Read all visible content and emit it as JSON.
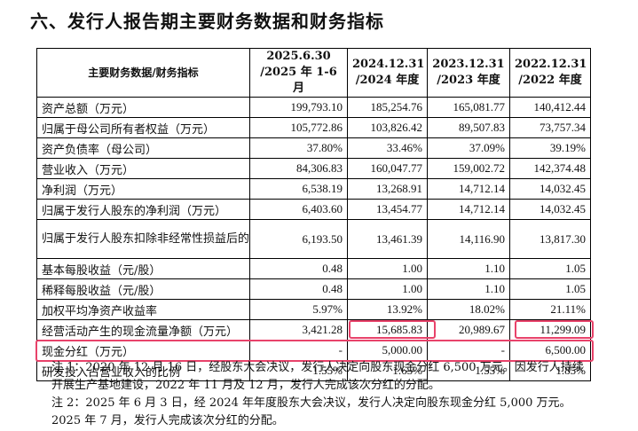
{
  "title": "六、发行人报告期主要财务数据和财务指标",
  "table": {
    "header": {
      "label": "主要财务数据/财务指标",
      "columns": [
        {
          "line1": "2025.6.30",
          "line2": "/2025 年 1-6 月"
        },
        {
          "line1": "2024.12.31",
          "line2": "/2024 年度"
        },
        {
          "line1": "2023.12.31",
          "line2": "/2023 年度"
        },
        {
          "line1": "2022.12.31",
          "line2": "/2022 年度"
        }
      ]
    },
    "rows": [
      {
        "label": "资产总额（万元）",
        "values": [
          "199,793.10",
          "185,254.76",
          "165,081.77",
          "140,412.44"
        ]
      },
      {
        "label": "归属于母公司所有者权益（万元）",
        "values": [
          "105,772.86",
          "103,826.42",
          "89,507.83",
          "73,757.34"
        ]
      },
      {
        "label": "资产负债率（母公司）",
        "values": [
          "37.80%",
          "33.46%",
          "37.09%",
          "39.19%"
        ]
      },
      {
        "label": "营业收入（万元）",
        "values": [
          "84,306.83",
          "160,047.77",
          "159,002.72",
          "142,374.48"
        ]
      },
      {
        "label": "净利润（万元）",
        "values": [
          "6,538.19",
          "13,268.91",
          "14,712.14",
          "14,032.45"
        ]
      },
      {
        "label": "归属于发行人股东的净利润（万元）",
        "values": [
          "6,403.60",
          "13,454.77",
          "14,712.14",
          "14,032.45"
        ]
      },
      {
        "label": "归属于发行人股东扣除非经常性损益后的净利润（万元）",
        "values": [
          "6,193.50",
          "13,461.39",
          "14,116.90",
          "13,817.30"
        ]
      },
      {
        "label": "基本每股收益（元/股）",
        "values": [
          "0.48",
          "1.00",
          "1.10",
          "1.05"
        ]
      },
      {
        "label": "稀释每股收益（元/股）",
        "values": [
          "0.48",
          "1.00",
          "1.10",
          "1.05"
        ]
      },
      {
        "label": "加权平均净资产收益率",
        "values": [
          "5.97%",
          "13.92%",
          "18.02%",
          "21.11%"
        ]
      },
      {
        "label": "经营活动产生的现金流量净额（万元）",
        "values": [
          "3,421.28",
          "15,685.83",
          "20,989.67",
          "11,299.09"
        ]
      },
      {
        "label": "现金分红（万元）",
        "values": [
          "-",
          "5,000.00",
          "-",
          "6,500.00"
        ]
      },
      {
        "label": "研发投入占营业收入的比例",
        "values": [
          "1.55%",
          "1.65%",
          "1.55%",
          "1.85%"
        ]
      }
    ]
  },
  "notes": [
    "注 1：2020 年 12 月 16 日，经股东大会决议，发行人决定向股东现金分红 6,500 万元。因发行人持续开展生产基地建设，2022 年 11 月及 12 月，发行人完成该次分红的分配。",
    "注 2：2025 年 6 月 3 日，经 2024 年年度股东大会决议，发行人决定向股东现金分红 5,000 万元。2025 年 7 月，发行人完成该次分红的分配。"
  ],
  "highlight_color": "#e8426a"
}
